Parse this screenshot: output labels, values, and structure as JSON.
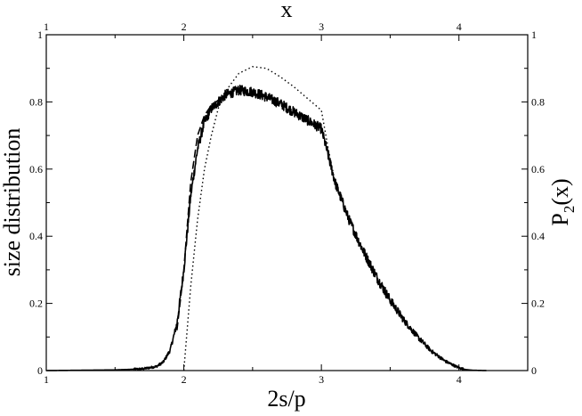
{
  "chart_data": {
    "type": "line",
    "xlabel_bottom": "2s/p",
    "xlabel_top": "x",
    "ylabel_left": "size distribution",
    "ylabel_right_main": "P",
    "ylabel_right_sub": "2",
    "ylabel_right_tail": "(x)",
    "xlim": [
      1,
      4.5
    ],
    "ylim": [
      0,
      1
    ],
    "x_ticks": [
      1,
      2,
      3,
      4
    ],
    "y_ticks": [
      0,
      0.2,
      0.4,
      0.6,
      0.8,
      1
    ],
    "x_tick_labels": [
      "1",
      "2",
      "3",
      "4"
    ],
    "y_tick_labels": [
      "0",
      "0.2",
      "0.4",
      "0.6",
      "0.8",
      "1"
    ],
    "grid": false,
    "series": [
      {
        "style": "solid-noisy",
        "x": [
          1.0,
          1.5,
          1.7,
          1.8,
          1.85,
          1.9,
          1.95,
          2.0,
          2.05,
          2.1,
          2.15,
          2.2,
          2.3,
          2.4,
          2.5,
          2.6,
          2.7,
          2.8,
          2.9,
          3.0,
          3.05,
          3.1,
          3.2,
          3.3,
          3.4,
          3.5,
          3.6,
          3.7,
          3.8,
          3.9,
          4.0,
          4.05,
          4.1,
          4.2
        ],
        "y": [
          0.0,
          0.002,
          0.005,
          0.012,
          0.025,
          0.06,
          0.14,
          0.3,
          0.52,
          0.66,
          0.74,
          0.78,
          0.82,
          0.835,
          0.83,
          0.815,
          0.795,
          0.77,
          0.745,
          0.72,
          0.64,
          0.56,
          0.45,
          0.36,
          0.28,
          0.21,
          0.15,
          0.1,
          0.058,
          0.028,
          0.008,
          0.003,
          0.001,
          0.0
        ]
      },
      {
        "style": "dashed",
        "x": [
          1.95,
          2.0,
          2.05,
          2.1,
          2.15,
          2.2,
          2.3
        ],
        "y": [
          0.12,
          0.3,
          0.56,
          0.7,
          0.76,
          0.79,
          0.82
        ]
      },
      {
        "style": "dotted",
        "x": [
          2.0,
          2.05,
          2.1,
          2.15,
          2.2,
          2.25,
          2.3,
          2.4,
          2.5,
          2.6,
          2.7,
          2.8,
          2.9,
          3.0,
          3.05,
          3.1
        ],
        "y": [
          0.0,
          0.25,
          0.45,
          0.6,
          0.7,
          0.78,
          0.83,
          0.885,
          0.905,
          0.9,
          0.875,
          0.845,
          0.81,
          0.775,
          0.66,
          0.56
        ]
      }
    ]
  }
}
